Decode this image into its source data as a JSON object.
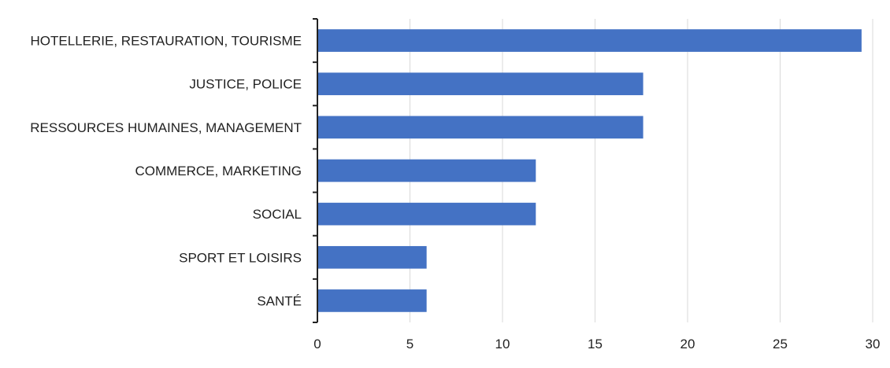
{
  "chart_data": {
    "type": "bar",
    "orientation": "horizontal",
    "title": "",
    "xlabel": "",
    "ylabel": "",
    "categories": [
      "HOTELLERIE, RESTAURATION, TOURISME",
      "JUSTICE, POLICE",
      "RESSOURCES HUMAINES, MANAGEMENT",
      "COMMERCE, MARKETING",
      "SOCIAL",
      "SPORT ET LOISIRS",
      "SANTÉ"
    ],
    "values": [
      29.4,
      17.6,
      17.6,
      11.8,
      11.8,
      5.9,
      5.9
    ],
    "xlim": [
      0,
      30
    ],
    "xticks": [
      0,
      5,
      10,
      15,
      20,
      25,
      30
    ],
    "grid": "vertical",
    "legend": "none",
    "colors": {
      "bar": "#4472C4",
      "grid": "#D9D9D9",
      "axis": "#222222",
      "text": "#222222"
    }
  }
}
